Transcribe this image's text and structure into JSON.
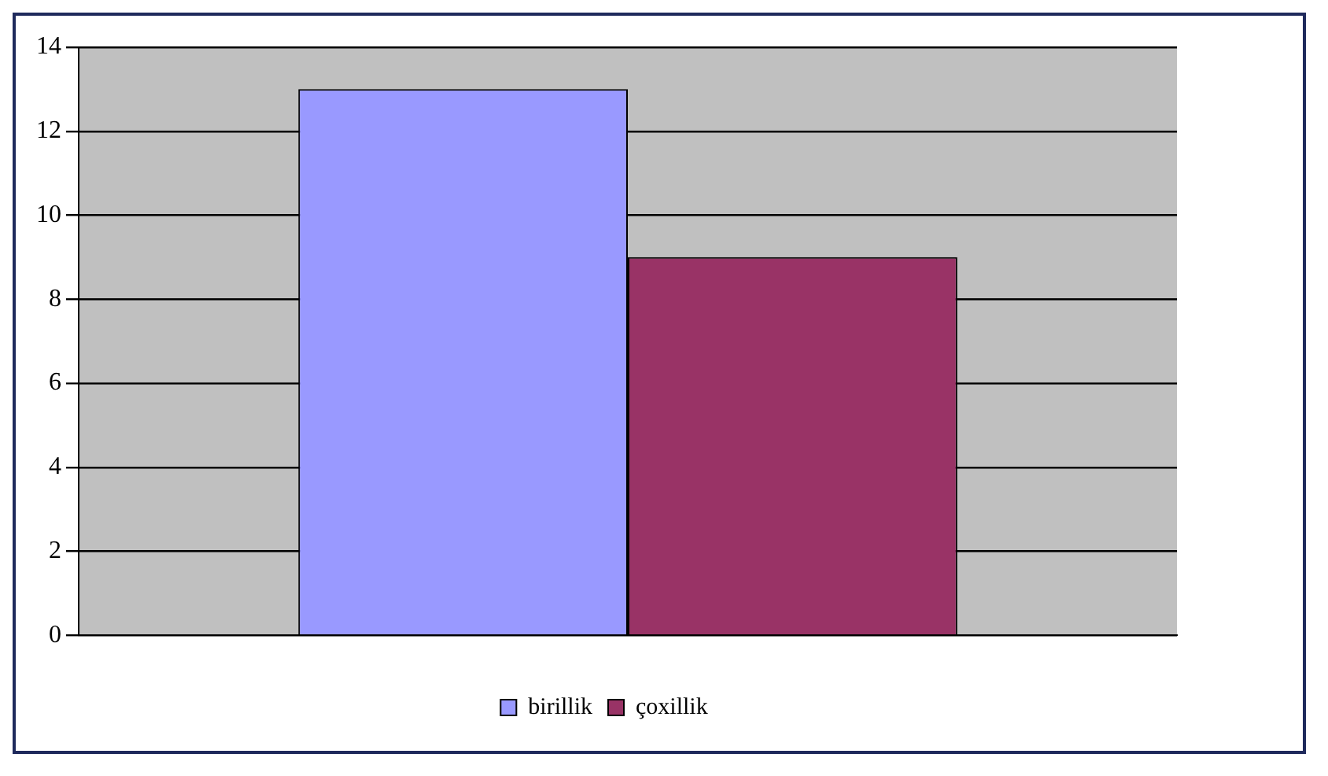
{
  "chart_data": {
    "type": "bar",
    "categories": [
      null
    ],
    "series": [
      {
        "name": "birillik",
        "color": "#9999ff",
        "values": [
          13
        ]
      },
      {
        "name": "çoxillik",
        "color": "#993366",
        "values": [
          9
        ]
      }
    ],
    "ylim": [
      0,
      14
    ],
    "yticks": [
      0,
      2,
      4,
      6,
      8,
      10,
      12,
      14
    ],
    "grid": "y",
    "legend": "bottom"
  }
}
